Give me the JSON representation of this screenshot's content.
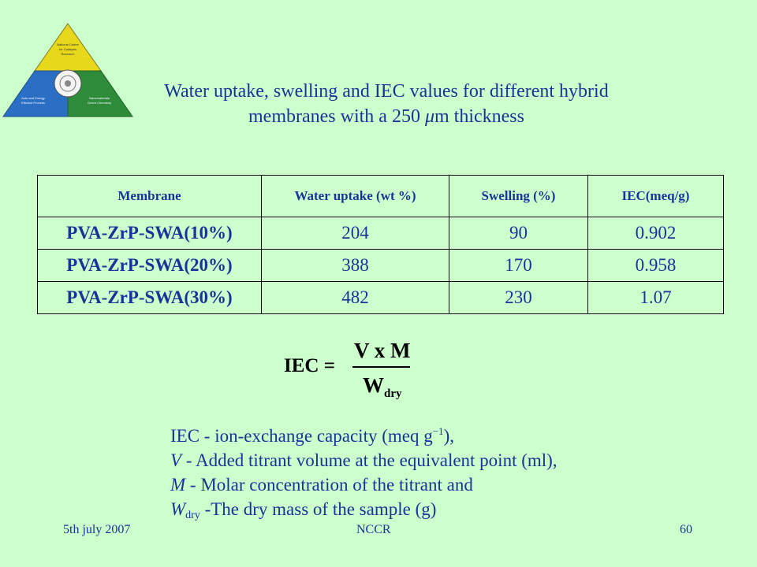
{
  "logo": {
    "top_text": "National Centre for Catalysis Research",
    "left_text": "Auto and Energy Efficient Process",
    "right_text": "Nanomaterials and Green Chemistry",
    "colors": {
      "top": "#e8d81c",
      "left": "#2a6fc4",
      "right": "#2e8b3a"
    }
  },
  "slide": {
    "title_line1": "Water uptake, swelling and IEC values for different hybrid",
    "title_line2_pre": "membranes with a 250 ",
    "title_line2_mu": "μ",
    "title_line2_post": "m thickness"
  },
  "table": {
    "headers": [
      "Membrane",
      "Water uptake (wt %)",
      "Swelling (%)",
      "IEC(meq/g)"
    ],
    "rows": [
      [
        "PVA-ZrP-SWA(10%)",
        "204",
        "90",
        "0.902"
      ],
      [
        "PVA-ZrP-SWA(20%)",
        "388",
        "170",
        "0.958"
      ],
      [
        "PVA-ZrP-SWA(30%)",
        "482",
        "230",
        "1.07"
      ]
    ]
  },
  "formula": {
    "lhs": "IEC =",
    "numerator": "V x M",
    "denominator_main": "W",
    "denominator_sub": "dry"
  },
  "definitions": {
    "line1_pre": "IEC - ion-exchange capacity (meq g",
    "line1_sup": "−1",
    "line1_post": "),",
    "line2_var": "V",
    "line2_text": " - Added titrant volume at the equivalent point (ml),",
    "line3_var": "M",
    "line3_text": " -  Molar concentration of the titrant and",
    "line4_var": "W",
    "line4_sub": "dry",
    "line4_text": " -The dry mass of the sample (g)"
  },
  "footer": {
    "date": "5th july 2007",
    "center": "NCCR",
    "page": "60"
  }
}
